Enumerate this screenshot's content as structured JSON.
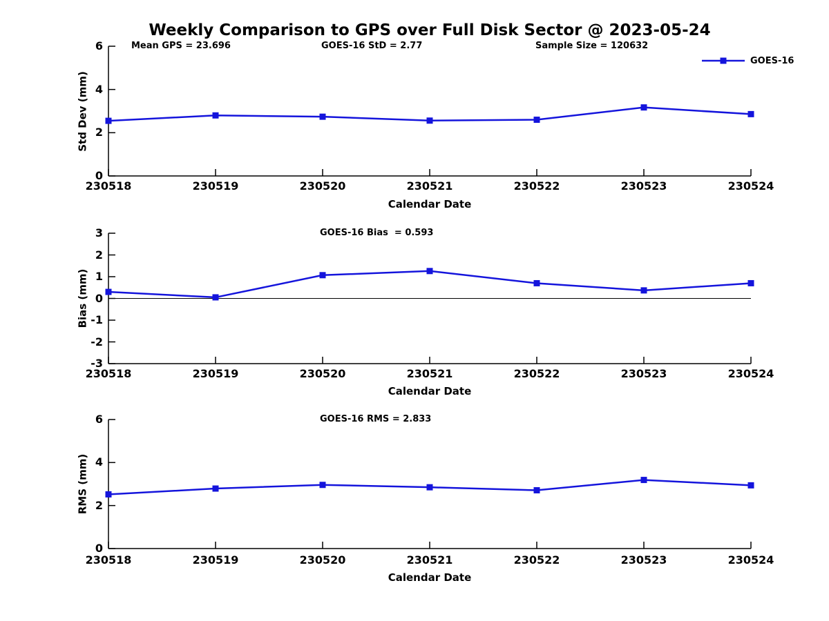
{
  "title": "Weekly Comparison to GPS over Full Disk Sector @ 2023-05-24",
  "xlabel": "Calendar Date",
  "legend": {
    "label": "GOES-16",
    "color": "#1414DC",
    "marker": "square"
  },
  "colors": {
    "line": "#1414DC",
    "axis": "#000000",
    "text": "#000000",
    "background": "#ffffff"
  },
  "chart_data": [
    {
      "type": "line",
      "title": "",
      "ylabel": "Std Dev (mm)",
      "xlabel": "Calendar Date",
      "categories": [
        "230518",
        "230519",
        "230520",
        "230521",
        "230522",
        "230523",
        "230524"
      ],
      "series": [
        {
          "name": "GOES-16",
          "values": [
            2.55,
            2.8,
            2.74,
            2.56,
            2.6,
            3.17,
            2.86
          ]
        }
      ],
      "ylim": [
        0,
        6
      ],
      "yticks": [
        0,
        2,
        4,
        6
      ],
      "annotations": [
        "Mean GPS = 23.696",
        "GOES-16 StD = 2.77",
        "Sample Size = 120632"
      ],
      "legend_position": "top-right",
      "grid": false,
      "zeroline": false
    },
    {
      "type": "line",
      "title": "",
      "ylabel": "Bias (mm)",
      "xlabel": "Calendar Date",
      "categories": [
        "230518",
        "230519",
        "230520",
        "230521",
        "230522",
        "230523",
        "230524"
      ],
      "series": [
        {
          "name": "GOES-16",
          "values": [
            0.3,
            0.05,
            1.07,
            1.26,
            0.7,
            0.37,
            0.7
          ]
        }
      ],
      "ylim": [
        -3,
        3
      ],
      "yticks": [
        3,
        2,
        1,
        0,
        -1,
        -2,
        -3
      ],
      "annotations": [
        "GOES-16 Bias  = 0.593"
      ],
      "legend_position": "none",
      "grid": false,
      "zeroline": true
    },
    {
      "type": "line",
      "title": "",
      "ylabel": "RMS (mm)",
      "xlabel": "Calendar Date",
      "categories": [
        "230518",
        "230519",
        "230520",
        "230521",
        "230522",
        "230523",
        "230524"
      ],
      "series": [
        {
          "name": "GOES-16",
          "values": [
            2.52,
            2.79,
            2.96,
            2.85,
            2.71,
            3.19,
            2.94
          ]
        }
      ],
      "ylim": [
        0,
        6
      ],
      "yticks": [
        0,
        2,
        4,
        6
      ],
      "annotations": [
        "GOES-16 RMS = 2.833"
      ],
      "legend_position": "none",
      "grid": false,
      "zeroline": false
    }
  ]
}
